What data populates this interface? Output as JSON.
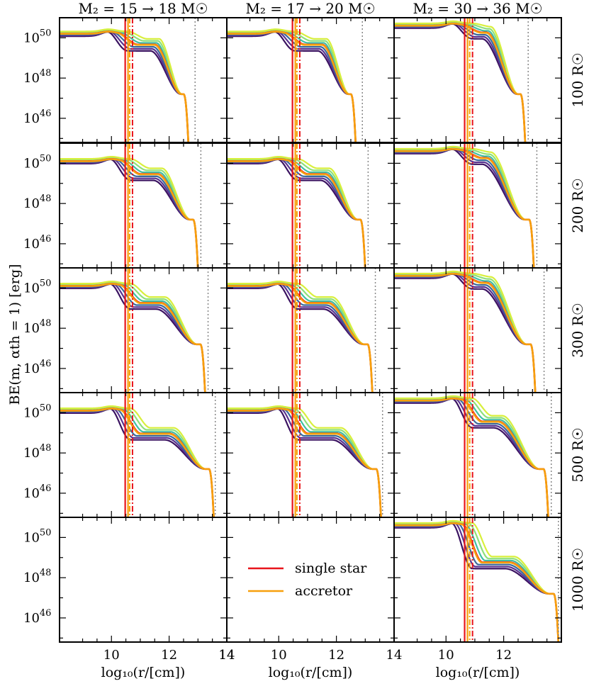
{
  "chart_data": {
    "type": "line",
    "layout": "grid 5 rows x 3 columns, shared axes",
    "columns": [
      {
        "title": "M₂ = 15 → 18 M☉"
      },
      {
        "title": "M₂ = 17 → 20 M☉"
      },
      {
        "title": "M₂ = 30 → 36 M☉"
      }
    ],
    "rows": [
      {
        "label": "100 R☉"
      },
      {
        "label": "200 R☉"
      },
      {
        "label": "300 R☉"
      },
      {
        "label": "500 R☉"
      },
      {
        "label": "1000 R☉"
      }
    ],
    "xlabel": "log₁₀(r/[cm])",
    "ylabel": "BE(m, αth = 1) [erg]",
    "xlim": [
      8.2,
      14
    ],
    "ylim_log10": [
      44.8,
      51
    ],
    "yscale": "log",
    "x_ticks": [
      "10",
      "12",
      "14"
    ],
    "y_ticks": [
      {
        "base": "10",
        "exp": "50",
        "value": 50
      },
      {
        "base": "10",
        "exp": "48",
        "value": 48
      },
      {
        "base": "10",
        "exp": "46",
        "value": 46
      }
    ],
    "legend": {
      "placement": "center of row 5, column 2",
      "entries": [
        {
          "label": "single star",
          "color": "#e8151b"
        },
        {
          "label": "accretor",
          "color": "#f7a00c"
        }
      ]
    },
    "colors": {
      "single": "#e8151b",
      "accretor": "#f7a00c",
      "palette": [
        "#3b1361",
        "#5a3290",
        "#3b6a9c",
        "#2c8ea8",
        "#3fbfa2",
        "#8ee07a",
        "#d8ef3c"
      ],
      "dotted_line": "#888888"
    },
    "panels": [
      {
        "row": 0,
        "col": 0,
        "present": true,
        "plateau": 50.2,
        "core_x": 10.2,
        "inner_drop": 0.2,
        "knee_y": 49.1,
        "knee_x": 11.5,
        "end_x": 12.72,
        "end_y": 44.8,
        "dotted_x": 12.9,
        "vlines": [
          10.55,
          10.73
        ]
      },
      {
        "row": 0,
        "col": 1,
        "present": true,
        "plateau": 50.2,
        "core_x": 10.2,
        "inner_drop": 0.2,
        "knee_y": 49.1,
        "knee_x": 11.5,
        "end_x": 12.72,
        "end_y": 44.8,
        "dotted_x": 12.9,
        "vlines": [
          10.55,
          10.73
        ]
      },
      {
        "row": 0,
        "col": 2,
        "present": true,
        "plateau": 50.6,
        "core_x": 10.55,
        "inner_drop": 0.2,
        "knee_y": 49.7,
        "knee_x": 11.4,
        "end_x": 12.8,
        "end_y": 44.8,
        "dotted_x": 12.85,
        "vlines": [
          10.72,
          10.92
        ]
      },
      {
        "row": 1,
        "col": 0,
        "present": true,
        "plateau": 50.1,
        "core_x": 10.3,
        "inner_drop": 0.25,
        "knee_y": 48.9,
        "knee_x": 11.6,
        "end_x": 13.05,
        "end_y": 44.8,
        "dotted_x": 13.1,
        "vlines": [
          10.55,
          10.73
        ]
      },
      {
        "row": 1,
        "col": 1,
        "present": true,
        "plateau": 50.1,
        "core_x": 10.3,
        "inner_drop": 0.25,
        "knee_y": 48.9,
        "knee_x": 11.6,
        "end_x": 13.05,
        "end_y": 44.8,
        "dotted_x": 13.1,
        "vlines": [
          10.55,
          10.73
        ]
      },
      {
        "row": 1,
        "col": 2,
        "present": true,
        "plateau": 50.6,
        "core_x": 10.55,
        "inner_drop": 0.2,
        "knee_y": 49.7,
        "knee_x": 11.4,
        "end_x": 13.1,
        "end_y": 44.8,
        "dotted_x": 13.15,
        "vlines": [
          10.72,
          10.92
        ]
      },
      {
        "row": 2,
        "col": 0,
        "present": true,
        "plateau": 50.1,
        "core_x": 10.3,
        "inner_drop": 0.3,
        "knee_y": 48.7,
        "knee_x": 11.7,
        "end_x": 13.3,
        "end_y": 44.8,
        "dotted_x": 13.35,
        "vlines": [
          10.55,
          10.73
        ]
      },
      {
        "row": 2,
        "col": 1,
        "present": true,
        "plateau": 50.1,
        "core_x": 10.3,
        "inner_drop": 0.3,
        "knee_y": 48.7,
        "knee_x": 11.7,
        "end_x": 13.3,
        "end_y": 44.8,
        "dotted_x": 13.35,
        "vlines": [
          10.55,
          10.73
        ]
      },
      {
        "row": 2,
        "col": 2,
        "present": true,
        "plateau": 50.6,
        "core_x": 10.55,
        "inner_drop": 0.2,
        "knee_y": 49.7,
        "knee_x": 11.4,
        "end_x": 13.15,
        "end_y": 44.8,
        "dotted_x": 13.4,
        "vlines": [
          10.72,
          10.92
        ]
      },
      {
        "row": 3,
        "col": 0,
        "present": true,
        "plateau": 50.1,
        "core_x": 10.3,
        "inner_drop": 0.35,
        "knee_y": 48.4,
        "knee_x": 12.0,
        "end_x": 13.6,
        "end_y": 44.8,
        "dotted_x": 13.6,
        "vlines": [
          10.55,
          10.73
        ]
      },
      {
        "row": 3,
        "col": 1,
        "present": true,
        "plateau": 50.1,
        "core_x": 10.3,
        "inner_drop": 0.35,
        "knee_y": 48.4,
        "knee_x": 12.0,
        "end_x": 13.6,
        "end_y": 44.8,
        "dotted_x": 13.6,
        "vlines": [
          10.55,
          10.73
        ]
      },
      {
        "row": 3,
        "col": 2,
        "present": true,
        "plateau": 50.6,
        "core_x": 10.55,
        "inner_drop": 0.2,
        "knee_y": 49.0,
        "knee_x": 11.8,
        "end_x": 13.6,
        "end_y": 44.8,
        "dotted_x": 13.65,
        "vlines": [
          10.72,
          10.92
        ]
      },
      {
        "row": 4,
        "col": 0,
        "present": false
      },
      {
        "row": 4,
        "col": 1,
        "present": false
      },
      {
        "row": 4,
        "col": 2,
        "present": true,
        "plateau": 50.6,
        "core_x": 10.55,
        "inner_drop": 0.2,
        "knee_y": 48.2,
        "knee_x": 12.2,
        "end_x": 13.95,
        "end_y": 44.8,
        "dotted_x": 13.9,
        "vlines": [
          10.72,
          10.92
        ]
      }
    ]
  }
}
